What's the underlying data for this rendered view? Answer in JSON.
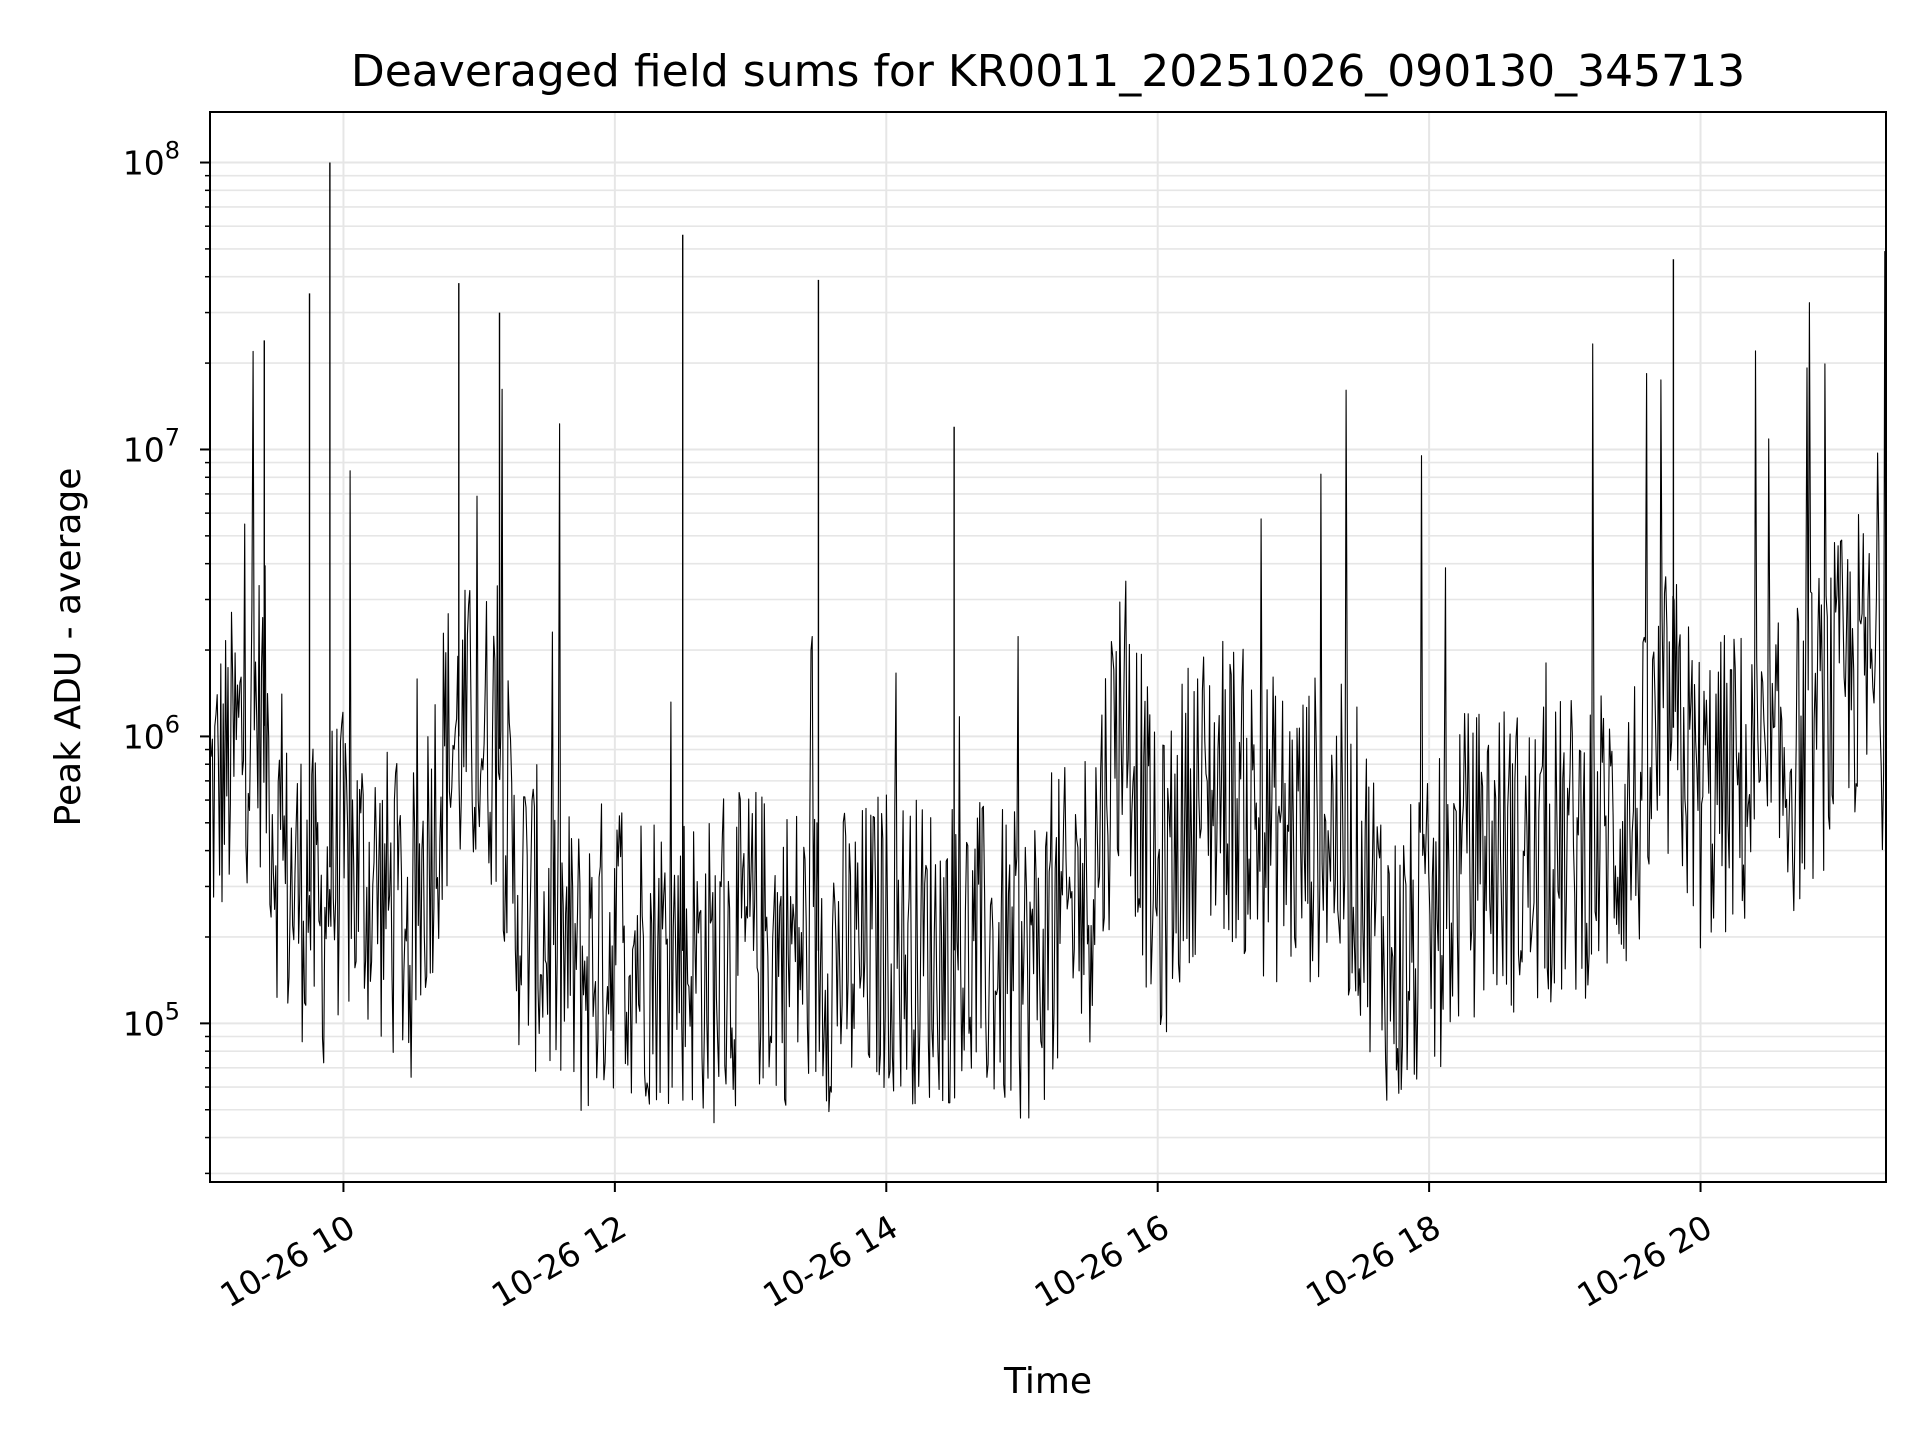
{
  "chart_data": {
    "type": "line",
    "title": "Deaveraged field sums for KR0011_20251026_090130_345713",
    "xlabel": "Time",
    "ylabel": "Peak ADU - average",
    "yscale": "log",
    "ylim": [
      28000,
      150000000
    ],
    "xlim": [
      "10-26 09:01",
      "10-26 21:22"
    ],
    "x_ticks": [
      {
        "label": "10-26 10",
        "value": "10-26 10:00"
      },
      {
        "label": "10-26 12",
        "value": "10-26 12:00"
      },
      {
        "label": "10-26 14",
        "value": "10-26 14:00"
      },
      {
        "label": "10-26 16",
        "value": "10-26 16:00"
      },
      {
        "label": "10-26 18",
        "value": "10-26 18:00"
      },
      {
        "label": "10-26 20",
        "value": "10-26 20:00"
      }
    ],
    "y_ticks": [
      {
        "base": "10",
        "exp": "5",
        "value": 100000
      },
      {
        "base": "10",
        "exp": "6",
        "value": 1000000
      },
      {
        "base": "10",
        "exp": "7",
        "value": 10000000
      },
      {
        "base": "10",
        "exp": "8",
        "value": 100000000
      }
    ],
    "grid": true,
    "line_color": "#000000",
    "grid_color": "#e6e6e6",
    "series": [
      {
        "x": [
          "10-26 09:01",
          "10-26 09:10",
          "10-26 09:20",
          "10-26 09:25",
          "10-26 09:30",
          "10-26 09:35",
          "10-26 09:45",
          "10-26 09:50",
          "10-26 09:54",
          "10-26 10:00",
          "10-26 10:15",
          "10-26 10:30",
          "10-26 10:45",
          "10-26 10:51",
          "10-26 11:00",
          "10-26 11:09",
          "10-26 11:15",
          "10-26 11:30",
          "10-26 11:45",
          "10-26 12:00",
          "10-26 12:15",
          "10-26 12:30",
          "10-26 12:45",
          "10-26 13:00",
          "10-26 13:15",
          "10-26 13:30",
          "10-26 13:45",
          "10-26 14:00",
          "10-26 14:15",
          "10-26 14:30",
          "10-26 14:45",
          "10-26 15:00",
          "10-26 15:15",
          "10-26 15:30",
          "10-26 15:45",
          "10-26 16:00",
          "10-26 16:15",
          "10-26 16:30",
          "10-26 16:45",
          "10-26 17:00",
          "10-26 17:15",
          "10-26 17:30",
          "10-26 17:45",
          "10-26 18:00",
          "10-26 18:15",
          "10-26 18:30",
          "10-26 18:45",
          "10-26 19:00",
          "10-26 19:15",
          "10-26 19:30",
          "10-26 19:45",
          "10-26 19:48",
          "10-26 20:00",
          "10-26 20:15",
          "10-26 20:30",
          "10-26 20:45",
          "10-26 21:00",
          "10-26 21:10",
          "10-26 21:22"
        ],
        "y": [
          600000,
          800000,
          1200000,
          24000000,
          450000,
          300000,
          35000000,
          200000,
          100000000,
          350000,
          300000,
          200000,
          900000,
          38000000,
          1000000,
          30000000,
          300000,
          200000,
          150000,
          200000,
          180000,
          56000000,
          150000,
          200000,
          180000,
          39000000,
          160000,
          200000,
          180000,
          12000000,
          170000,
          150000,
          200000,
          300000,
          1500000,
          250000,
          600000,
          700000,
          500000,
          450000,
          500000,
          350000,
          150000,
          200000,
          350000,
          400000,
          350000,
          400000,
          450000,
          500000,
          1100000,
          46000000,
          600000,
          700000,
          650000,
          900000,
          1400000,
          1800000,
          1300000
        ]
      }
    ]
  }
}
